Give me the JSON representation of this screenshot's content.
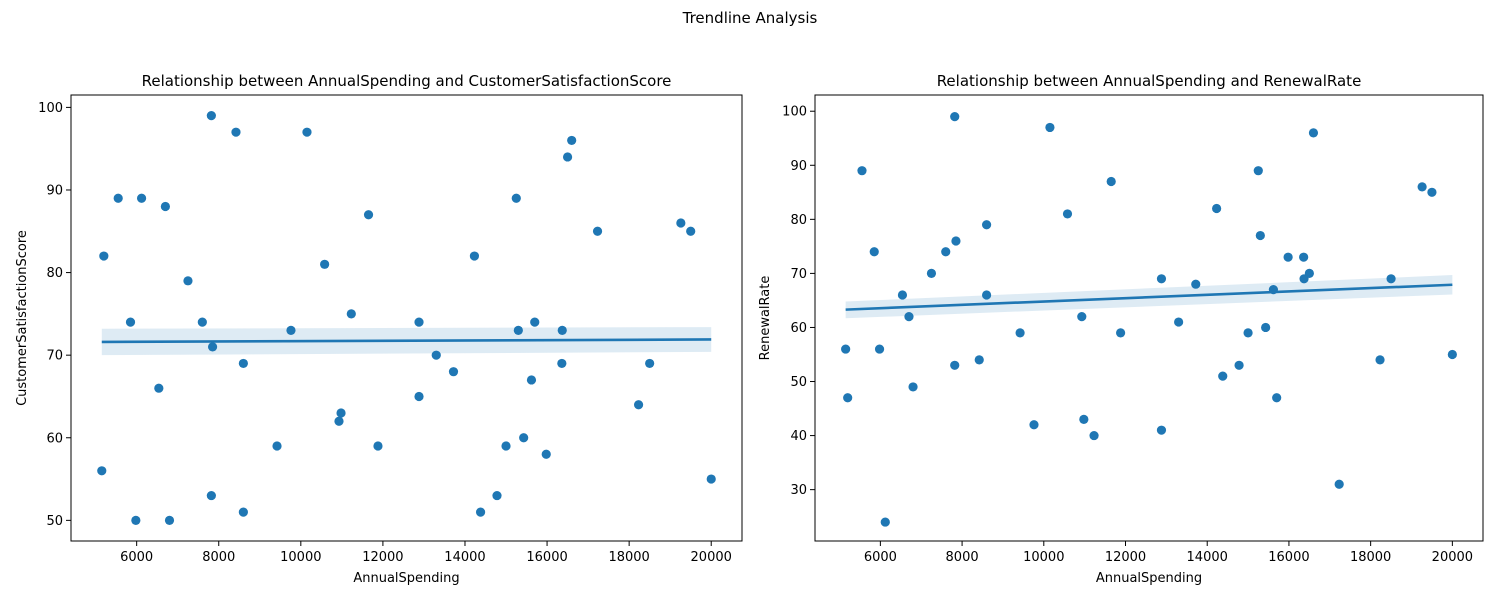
{
  "figure": {
    "suptitle": "Trendline Analysis"
  },
  "colors": {
    "points": "#1f77b4",
    "line": "#1f77b4",
    "band": "#1f77b4"
  },
  "chart_data": [
    {
      "type": "scatter",
      "title": "Relationship between AnnualSpending and CustomerSatisfactionScore",
      "xlabel": "AnnualSpending",
      "ylabel": "CustomerSatisfactionScore",
      "xlim": [
        4400,
        20750
      ],
      "ylim": [
        47.5,
        101.5
      ],
      "xticks": [
        6000,
        8000,
        10000,
        12000,
        14000,
        16000,
        18000,
        20000
      ],
      "yticks": [
        50,
        60,
        70,
        80,
        90,
        100
      ],
      "points": [
        [
          5150,
          56
        ],
        [
          5200,
          82
        ],
        [
          5550,
          89
        ],
        [
          5850,
          74
        ],
        [
          5980,
          50
        ],
        [
          6120,
          89
        ],
        [
          6540,
          66
        ],
        [
          6700,
          88
        ],
        [
          6800,
          50
        ],
        [
          7250,
          79
        ],
        [
          7600,
          74
        ],
        [
          7820,
          99
        ],
        [
          7820,
          53
        ],
        [
          7850,
          71
        ],
        [
          8420,
          97
        ],
        [
          8600,
          69
        ],
        [
          8600,
          51
        ],
        [
          9420,
          59
        ],
        [
          9760,
          73
        ],
        [
          10150,
          97
        ],
        [
          10580,
          81
        ],
        [
          10930,
          62
        ],
        [
          10980,
          63
        ],
        [
          11230,
          75
        ],
        [
          11650,
          87
        ],
        [
          11880,
          59
        ],
        [
          12880,
          74
        ],
        [
          12880,
          65
        ],
        [
          13300,
          70
        ],
        [
          13720,
          68
        ],
        [
          14230,
          82
        ],
        [
          14380,
          51
        ],
        [
          14780,
          53
        ],
        [
          15000,
          59
        ],
        [
          15250,
          89
        ],
        [
          15300,
          73
        ],
        [
          15430,
          60
        ],
        [
          15620,
          67
        ],
        [
          15700,
          74
        ],
        [
          15980,
          58
        ],
        [
          16360,
          69
        ],
        [
          16370,
          73
        ],
        [
          16500,
          94
        ],
        [
          16600,
          96
        ],
        [
          17230,
          85
        ],
        [
          18230,
          64
        ],
        [
          18500,
          69
        ],
        [
          19260,
          86
        ],
        [
          19500,
          85
        ],
        [
          20000,
          55
        ]
      ],
      "trend": {
        "x": [
          5150,
          20000
        ],
        "y": [
          71.6,
          71.9
        ],
        "ci_lower": [
          70.0,
          70.4
        ],
        "ci_upper": [
          73.2,
          73.4
        ]
      },
      "grid": false
    },
    {
      "type": "scatter",
      "title": "Relationship between AnnualSpending and RenewalRate",
      "xlabel": "AnnualSpending",
      "ylabel": "RenewalRate",
      "xlim": [
        4400,
        20750
      ],
      "ylim": [
        20.5,
        103
      ],
      "xticks": [
        6000,
        8000,
        10000,
        12000,
        14000,
        16000,
        18000,
        20000
      ],
      "yticks": [
        30,
        40,
        50,
        60,
        70,
        80,
        90,
        100
      ],
      "points": [
        [
          5150,
          56
        ],
        [
          5200,
          47
        ],
        [
          5550,
          89
        ],
        [
          5850,
          74
        ],
        [
          5980,
          56
        ],
        [
          6120,
          24
        ],
        [
          6540,
          66
        ],
        [
          6700,
          62
        ],
        [
          6800,
          49
        ],
        [
          7250,
          70
        ],
        [
          7600,
          74
        ],
        [
          7820,
          99
        ],
        [
          7820,
          53
        ],
        [
          7850,
          76
        ],
        [
          8420,
          54
        ],
        [
          8600,
          79
        ],
        [
          8600,
          66
        ],
        [
          9420,
          59
        ],
        [
          9760,
          42
        ],
        [
          10150,
          97
        ],
        [
          10580,
          81
        ],
        [
          10930,
          62
        ],
        [
          10980,
          43
        ],
        [
          11230,
          40
        ],
        [
          11650,
          87
        ],
        [
          11880,
          59
        ],
        [
          12880,
          69
        ],
        [
          12880,
          41
        ],
        [
          13300,
          61
        ],
        [
          13720,
          68
        ],
        [
          14230,
          82
        ],
        [
          14380,
          51
        ],
        [
          14780,
          53
        ],
        [
          15000,
          59
        ],
        [
          15250,
          89
        ],
        [
          15300,
          77
        ],
        [
          15430,
          60
        ],
        [
          15620,
          67
        ],
        [
          15700,
          47
        ],
        [
          15980,
          73
        ],
        [
          16360,
          73
        ],
        [
          16370,
          69
        ],
        [
          16500,
          70
        ],
        [
          16600,
          96
        ],
        [
          17230,
          31
        ],
        [
          18230,
          54
        ],
        [
          18500,
          69
        ],
        [
          19260,
          86
        ],
        [
          19500,
          85
        ],
        [
          20000,
          55
        ]
      ],
      "trend": {
        "x": [
          5150,
          20000
        ],
        "y": [
          63.3,
          67.9
        ],
        "ci_lower": [
          61.7,
          66.1
        ],
        "ci_upper": [
          64.8,
          69.7
        ]
      },
      "grid": false
    }
  ]
}
